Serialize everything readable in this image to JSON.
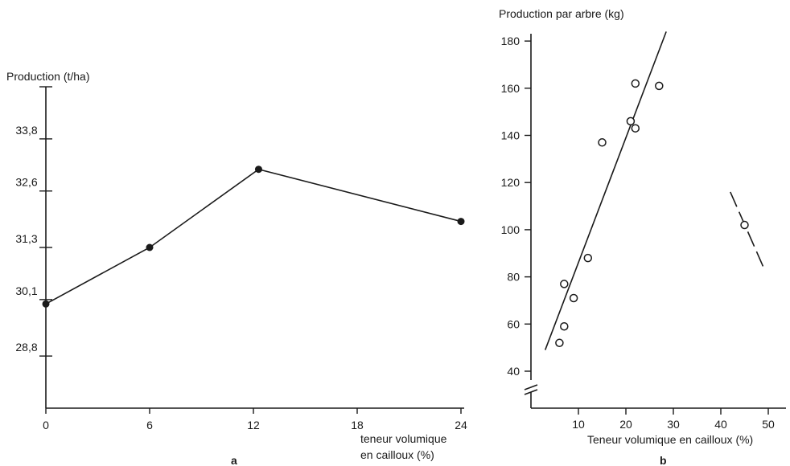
{
  "chart_data": [
    {
      "type": "line",
      "panel_label": "a",
      "ylabel": "Production (t/ha)",
      "xlabel_line1": "teneur volumique",
      "xlabel_line2": "en cailloux (%)",
      "xticks": [
        0,
        6,
        12,
        18,
        24
      ],
      "yticks": [
        "28,8",
        "30,1",
        "31,3",
        "32,6",
        "33,8"
      ],
      "x": [
        0,
        6,
        12.3,
        24
      ],
      "y": [
        30.0,
        31.3,
        33.1,
        31.9
      ],
      "xlim": [
        0,
        24
      ],
      "ylim": [
        27.6,
        35.0
      ]
    },
    {
      "type": "scatter",
      "panel_label": "b",
      "ylabel": "Production par arbre (kg)",
      "xlabel": "Teneur volumique en cailloux (%)",
      "xticks": [
        10,
        20,
        30,
        40,
        50
      ],
      "yticks": [
        40,
        60,
        80,
        100,
        120,
        140,
        160,
        180
      ],
      "points": [
        {
          "x": 6,
          "y": 52
        },
        {
          "x": 7,
          "y": 59
        },
        {
          "x": 9,
          "y": 71
        },
        {
          "x": 7,
          "y": 77
        },
        {
          "x": 12,
          "y": 88
        },
        {
          "x": 15,
          "y": 137
        },
        {
          "x": 21,
          "y": 146
        },
        {
          "x": 22,
          "y": 143
        },
        {
          "x": 22,
          "y": 162
        },
        {
          "x": 27,
          "y": 161
        },
        {
          "x": 45,
          "y": 102
        }
      ],
      "fit_line": [
        {
          "x": 3,
          "y": 49
        },
        {
          "x": 28.5,
          "y": 184
        }
      ],
      "dashed_segment": [
        {
          "x": 42,
          "y": 116
        },
        {
          "x": 49,
          "y": 84
        }
      ],
      "xlim": [
        0,
        53
      ],
      "ylim": [
        30,
        190
      ]
    }
  ]
}
